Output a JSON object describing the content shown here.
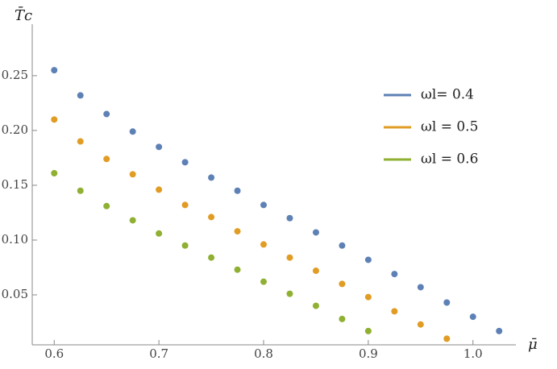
{
  "chart_data": {
    "type": "scatter",
    "x_label": "μ̄",
    "y_label": "T̄c",
    "xlim": [
      0.579,
      1.041
    ],
    "ylim": [
      0.0044,
      0.297
    ],
    "xticks": [
      0.6,
      0.7,
      0.8,
      0.9,
      {
        "value": 1,
        "label": "1.0"
      }
    ],
    "yticks": [
      0.05,
      {
        "value": 0.1,
        "label": "0.10"
      },
      0.15,
      {
        "value": 0.2,
        "label": "0.20"
      },
      0.25
    ],
    "series": [
      {
        "name": "ωl= 0.4",
        "color": "#5e81b5",
        "x": [
          0.6,
          0.625,
          0.65,
          0.675,
          0.7,
          0.725,
          0.75,
          0.775,
          0.8,
          0.825,
          0.85,
          0.875,
          0.9,
          0.925,
          0.95,
          0.975,
          1.0,
          1.025
        ],
        "values": [
          0.255,
          0.232,
          0.215,
          0.199,
          0.185,
          0.171,
          0.157,
          0.145,
          0.132,
          0.12,
          0.107,
          0.095,
          0.082,
          0.069,
          0.057,
          0.043,
          0.03,
          0.017
        ]
      },
      {
        "name": "ωl = 0.5",
        "color": "#e19c24",
        "x": [
          0.6,
          0.625,
          0.65,
          0.675,
          0.7,
          0.725,
          0.75,
          0.775,
          0.8,
          0.825,
          0.85,
          0.875,
          0.9,
          0.925,
          0.95,
          0.975
        ],
        "values": [
          0.21,
          0.19,
          0.174,
          0.16,
          0.146,
          0.132,
          0.121,
          0.108,
          0.096,
          0.084,
          0.072,
          0.06,
          0.048,
          0.035,
          0.023,
          0.01
        ]
      },
      {
        "name": "ωl = 0.6",
        "color": "#8fb032",
        "x": [
          0.6,
          0.625,
          0.65,
          0.675,
          0.7,
          0.725,
          0.75,
          0.775,
          0.8,
          0.825,
          0.85,
          0.875,
          0.9
        ],
        "values": [
          0.161,
          0.145,
          0.131,
          0.118,
          0.106,
          0.095,
          0.084,
          0.073,
          0.062,
          0.051,
          0.04,
          0.028,
          0.017
        ]
      }
    ],
    "legend": "upper right"
  }
}
